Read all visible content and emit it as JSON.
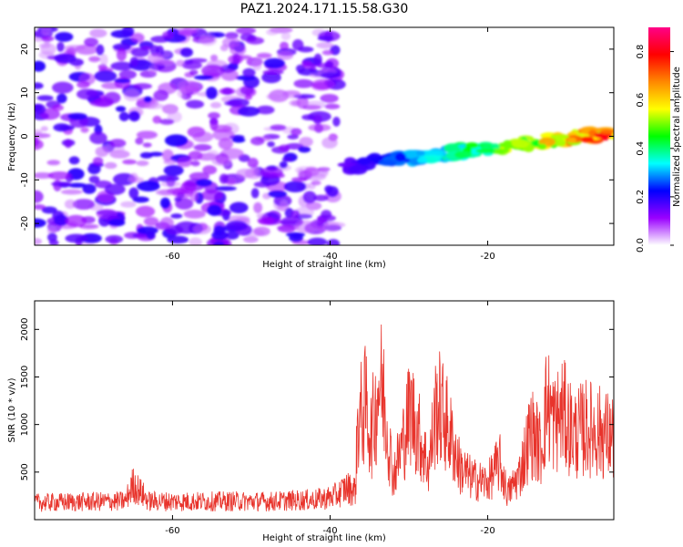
{
  "title": "PAZ1.2024.171.15.58.G30",
  "chart_data": [
    {
      "type": "heatmap",
      "xlabel": "Height of straight line (km)",
      "ylabel": "Frequency (Hz)",
      "xlim": [
        -77.5,
        -4
      ],
      "ylim": [
        -25,
        25
      ],
      "xticks": [
        -60,
        -40,
        -20
      ],
      "yticks": [
        -20,
        -10,
        0,
        10,
        20
      ],
      "grid": false,
      "colorbar": {
        "label": "Normalized spectral amplitude",
        "range": [
          0,
          0.9
        ],
        "ticks": [
          0.0,
          0.2,
          0.4,
          0.6,
          0.8
        ],
        "colormap": [
          "#ffffff",
          "#9a00ff",
          "#0000ff",
          "#00ffff",
          "#00ff00",
          "#ffff00",
          "#ff8800",
          "#ff0000",
          "#ff0088"
        ]
      },
      "features": [
        {
          "region": "diffuse noise",
          "x": [
            -77.5,
            -39
          ],
          "y": [
            -25,
            25
          ],
          "amplitude": [
            0.05,
            0.2
          ]
        },
        {
          "region": "signal track",
          "x": [
            -38,
            -4
          ],
          "y": [
            -7,
            1
          ],
          "amplitude": [
            0.15,
            0.85
          ]
        }
      ]
    },
    {
      "type": "line",
      "xlabel": "Height of straight line (km)",
      "ylabel": "SNR (10 * v/v)",
      "xlim": [
        -77.5,
        -4
      ],
      "ylim": [
        0,
        2300
      ],
      "xticks": [
        -60,
        -40,
        -20
      ],
      "yticks": [
        500,
        1000,
        1500,
        2000
      ],
      "grid": false,
      "color": "#e8342c",
      "series": [
        {
          "x": [
            -77.5,
            -72,
            -66,
            -65,
            -63,
            -58,
            -52,
            -48,
            -45,
            -42,
            -40,
            -39,
            -38,
            -36.8,
            -36.5,
            -35.5,
            -34.8,
            -34.2,
            -33.8,
            -33.2,
            -32,
            -31,
            -29.8,
            -29,
            -27.5,
            -26.5,
            -25.5,
            -24.5,
            -23.5,
            -22,
            -20,
            -18.5,
            -17.5,
            -16,
            -14.5,
            -13.2,
            -12.5,
            -11.5,
            -10.5,
            -9,
            -7.5,
            -6,
            -4
          ],
          "values": [
            230,
            240,
            250,
            480,
            250,
            245,
            250,
            245,
            260,
            270,
            300,
            340,
            430,
            400,
            1300,
            1550,
            1150,
            1500,
            1900,
            1650,
            600,
            950,
            1500,
            1250,
            700,
            1550,
            1400,
            1050,
            700,
            550,
            500,
            780,
            350,
            600,
            1200,
            950,
            1600,
            1300,
            1450,
            1150,
            1250,
            1200,
            1100
          ]
        }
      ]
    }
  ]
}
